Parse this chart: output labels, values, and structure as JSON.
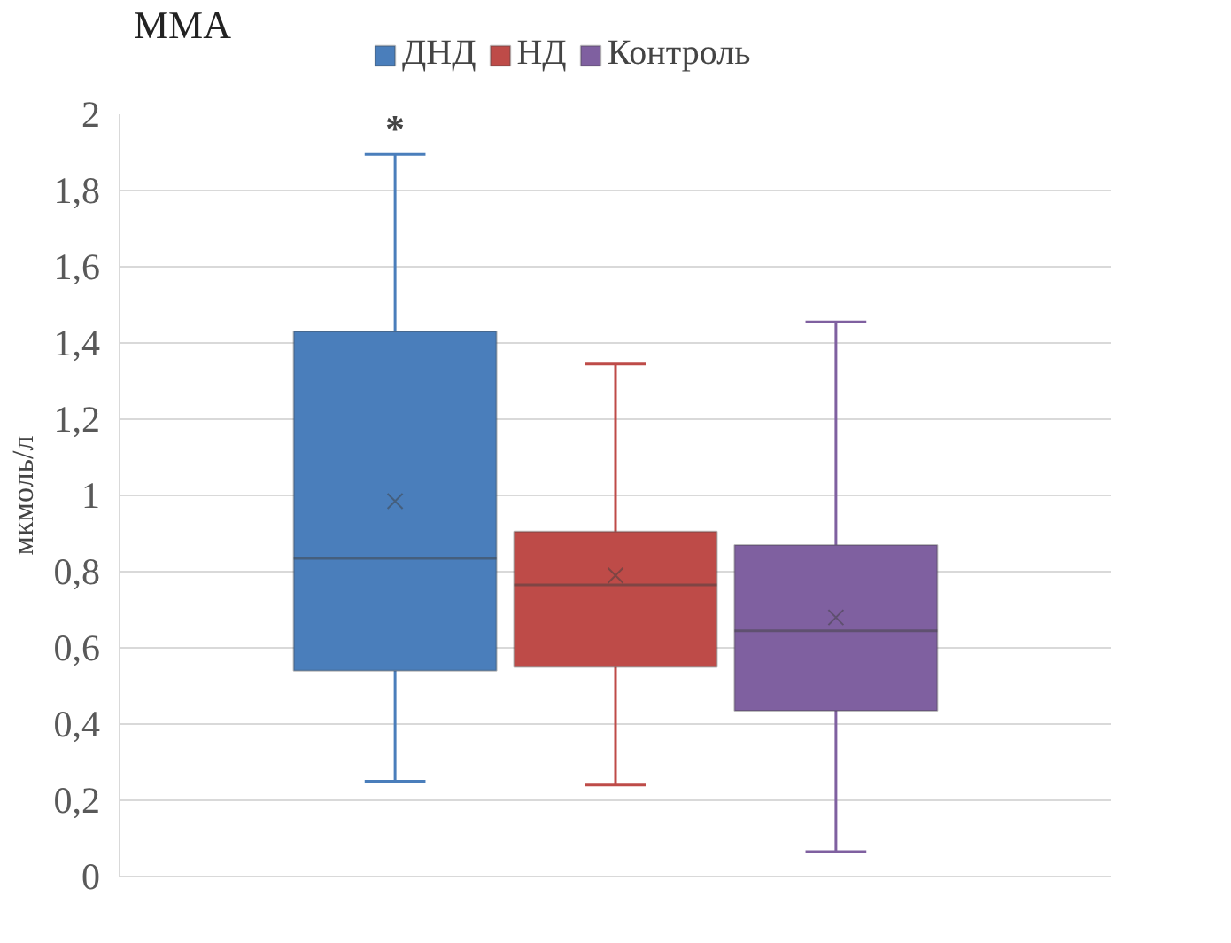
{
  "chart_data": {
    "type": "box",
    "title": "MMA",
    "ylabel": "мкмоль/л",
    "categories": [
      null
    ],
    "series": [
      {
        "name": "ДНД",
        "color": "#4a7ebb",
        "boxes": [
          {
            "low": 0.25,
            "q1": 0.54,
            "median": 0.835,
            "q3": 1.43,
            "high": 1.895,
            "mean": 0.985
          }
        ]
      },
      {
        "name": "НД",
        "color": "#be4b48",
        "boxes": [
          {
            "low": 0.24,
            "q1": 0.55,
            "median": 0.765,
            "q3": 0.905,
            "high": 1.345,
            "mean": 0.79
          }
        ]
      },
      {
        "name": "Контроль",
        "color": "#7f60a0",
        "boxes": [
          {
            "low": 0.065,
            "q1": 0.435,
            "median": 0.645,
            "q3": 0.87,
            "high": 1.455,
            "mean": 0.68
          }
        ]
      }
    ],
    "annotations": [
      "*"
    ],
    "ylim": [
      0,
      2
    ],
    "yticks": [
      {
        "value": 0,
        "label": "0"
      },
      {
        "value": 0.2,
        "label": "0,2"
      },
      {
        "value": 0.4,
        "label": "0,4"
      },
      {
        "value": 0.6,
        "label": "0,6"
      },
      {
        "value": 0.8,
        "label": "0,8"
      },
      {
        "value": 1,
        "label": "1"
      },
      {
        "value": 1.2,
        "label": "1,2"
      },
      {
        "value": 1.4,
        "label": "1,4"
      },
      {
        "value": 1.6,
        "label": "1,6"
      },
      {
        "value": 1.8,
        "label": "1,8"
      },
      {
        "value": 2,
        "label": "2"
      }
    ],
    "grid": "y",
    "legend": "top",
    "marker": "cross"
  }
}
